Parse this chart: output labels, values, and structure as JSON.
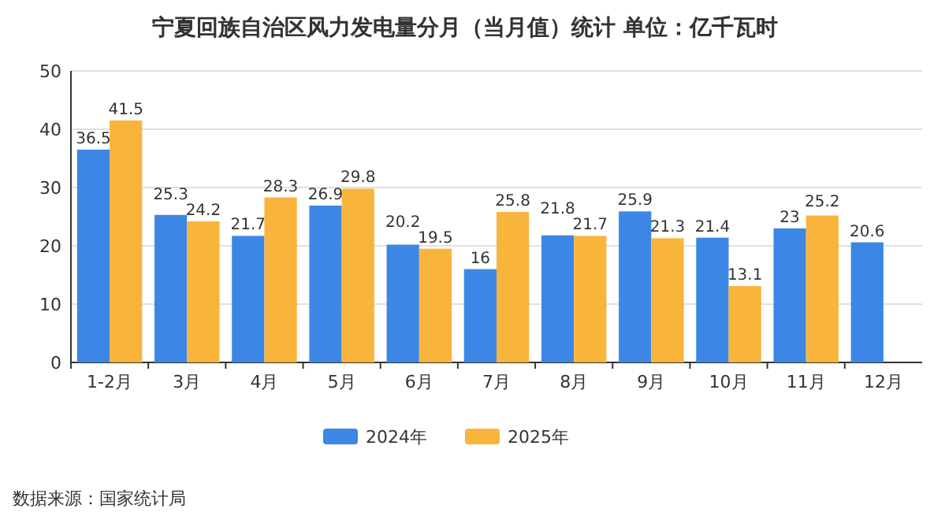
{
  "chart_data": {
    "type": "bar",
    "title": "宁夏回族自治区风力发电量分月（当月值）统计  单位：亿千瓦时",
    "categories": [
      "1-2月",
      "3月",
      "4月",
      "5月",
      "6月",
      "7月",
      "8月",
      "9月",
      "10月",
      "11月",
      "12月"
    ],
    "series": [
      {
        "name": "2024年",
        "color": "#3c87e6",
        "values": [
          36.5,
          25.3,
          21.7,
          26.9,
          20.2,
          16,
          21.8,
          25.9,
          21.4,
          23,
          20.6
        ]
      },
      {
        "name": "2025年",
        "color": "#f9b43c",
        "values": [
          41.5,
          24.2,
          28.3,
          29.8,
          19.5,
          25.8,
          21.7,
          21.3,
          13.1,
          25.2,
          null
        ]
      }
    ],
    "ylim": [
      0,
      50
    ],
    "yticks": [
      0,
      10,
      20,
      30,
      40,
      50
    ],
    "grid": "y",
    "legend": "bottom",
    "data_labels": true,
    "annotations": [
      "数据来源：国家统计局"
    ]
  }
}
